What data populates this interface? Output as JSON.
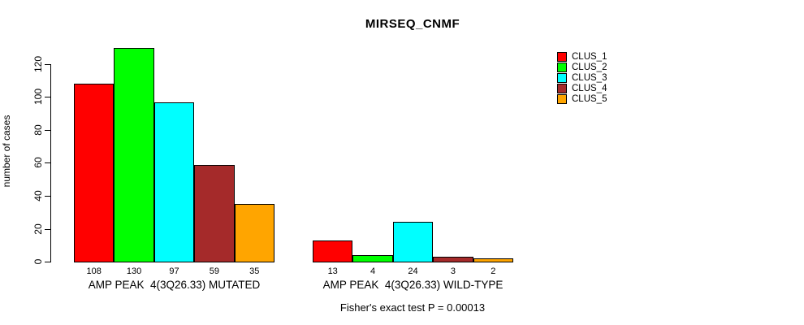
{
  "chart_data": {
    "type": "bar",
    "title": "MIRSEQ_CNMF",
    "xlabel": "",
    "ylabel": "number of cases",
    "ylim": [
      0,
      130
    ],
    "yticks": [
      0,
      20,
      40,
      60,
      80,
      100,
      120
    ],
    "grid": false,
    "legend_position": "right",
    "annotation": "Fisher's exact test P = 0.00013",
    "series": [
      {
        "name": "CLUS_1",
        "color": "#ff0000",
        "values": [
          108,
          13
        ]
      },
      {
        "name": "CLUS_2",
        "color": "#00ff00",
        "values": [
          130,
          4
        ]
      },
      {
        "name": "CLUS_3",
        "color": "#00ffff",
        "values": [
          97,
          24
        ]
      },
      {
        "name": "CLUS_4",
        "color": "#a52a2a",
        "values": [
          59,
          3
        ]
      },
      {
        "name": "CLUS_5",
        "color": "#ffa500",
        "values": [
          35,
          2
        ]
      }
    ],
    "groups": [
      {
        "label": "AMP PEAK  4(3Q26.33) MUTATED",
        "values": [
          108,
          130,
          97,
          59,
          35
        ],
        "bar_value_labels": [
          "108",
          "130",
          "97",
          "59",
          "35"
        ]
      },
      {
        "label": "AMP PEAK  4(3Q26.33) WILD-TYPE",
        "values": [
          13,
          4,
          24,
          3,
          2
        ],
        "bar_value_labels": [
          "13",
          "4",
          "24",
          "3",
          "2"
        ]
      }
    ],
    "bar_edge_color": "#000000",
    "background_color": "#ffffff"
  }
}
